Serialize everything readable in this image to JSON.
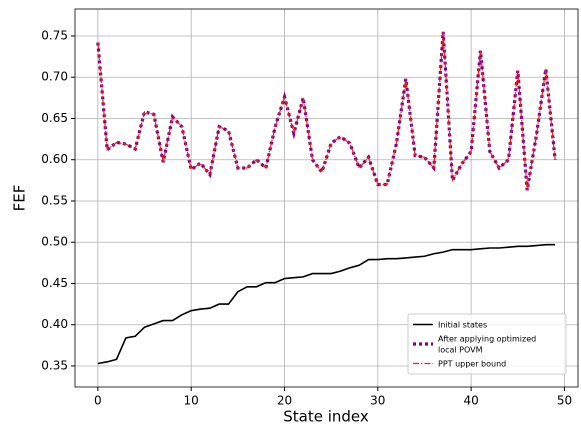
{
  "chart_data": {
    "type": "line",
    "xlabel": "State index",
    "ylabel": "FEF",
    "x": [
      0,
      1,
      2,
      3,
      4,
      5,
      6,
      7,
      8,
      9,
      10,
      11,
      12,
      13,
      14,
      15,
      16,
      17,
      18,
      19,
      20,
      21,
      22,
      23,
      24,
      25,
      26,
      27,
      28,
      29,
      30,
      31,
      32,
      33,
      34,
      35,
      36,
      37,
      38,
      39,
      40,
      41,
      42,
      43,
      44,
      45,
      46,
      47,
      48,
      49
    ],
    "series": [
      {
        "name": "Initial states",
        "color": "#000000",
        "style": "solid",
        "values": [
          0.353,
          0.355,
          0.358,
          0.384,
          0.386,
          0.397,
          0.401,
          0.405,
          0.405,
          0.412,
          0.417,
          0.419,
          0.42,
          0.425,
          0.425,
          0.44,
          0.446,
          0.446,
          0.451,
          0.451,
          0.456,
          0.457,
          0.458,
          0.462,
          0.462,
          0.462,
          0.465,
          0.469,
          0.472,
          0.479,
          0.479,
          0.48,
          0.48,
          0.481,
          0.482,
          0.483,
          0.486,
          0.488,
          0.491,
          0.491,
          0.491,
          0.492,
          0.493,
          0.493,
          0.494,
          0.495,
          0.495,
          0.496,
          0.497,
          0.497
        ]
      },
      {
        "name": "After applying optimized\nlocal POVM",
        "color": "#800080",
        "style": "dotted",
        "values": [
          0.742,
          0.612,
          0.621,
          0.619,
          0.613,
          0.658,
          0.655,
          0.597,
          0.652,
          0.64,
          0.588,
          0.596,
          0.582,
          0.64,
          0.635,
          0.59,
          0.59,
          0.6,
          0.59,
          0.64,
          0.676,
          0.632,
          0.675,
          0.6,
          0.585,
          0.62,
          0.628,
          0.62,
          0.59,
          0.603,
          0.57,
          0.57,
          0.62,
          0.698,
          0.605,
          0.603,
          0.59,
          0.755,
          0.575,
          0.595,
          0.61,
          0.732,
          0.61,
          0.59,
          0.6,
          0.708,
          0.563,
          0.63,
          0.71,
          0.6
        ]
      },
      {
        "name": "PPT upper bound",
        "color": "#e8231e",
        "style": "dashdot",
        "values": [
          0.742,
          0.612,
          0.621,
          0.619,
          0.613,
          0.658,
          0.655,
          0.597,
          0.652,
          0.64,
          0.588,
          0.596,
          0.582,
          0.64,
          0.635,
          0.59,
          0.59,
          0.6,
          0.59,
          0.64,
          0.676,
          0.632,
          0.675,
          0.6,
          0.585,
          0.62,
          0.628,
          0.62,
          0.59,
          0.603,
          0.57,
          0.57,
          0.62,
          0.698,
          0.605,
          0.603,
          0.59,
          0.755,
          0.575,
          0.595,
          0.61,
          0.732,
          0.61,
          0.59,
          0.6,
          0.708,
          0.563,
          0.63,
          0.71,
          0.6
        ]
      }
    ],
    "xlim": [
      -2.45,
      51.45
    ],
    "ylim": [
      0.3245,
      0.7827
    ],
    "xticks": [
      0,
      10,
      20,
      30,
      40,
      50
    ],
    "yticks": [
      0.35,
      {
        "value": 0.4,
        "label": "0.40"
      },
      0.45,
      {
        "value": 0.5,
        "label": "0.50"
      },
      0.55,
      {
        "value": 0.6,
        "label": "0.60"
      },
      0.65,
      {
        "value": 0.7,
        "label": "0.70"
      },
      0.75
    ],
    "grid": true,
    "legend": "lower right"
  }
}
